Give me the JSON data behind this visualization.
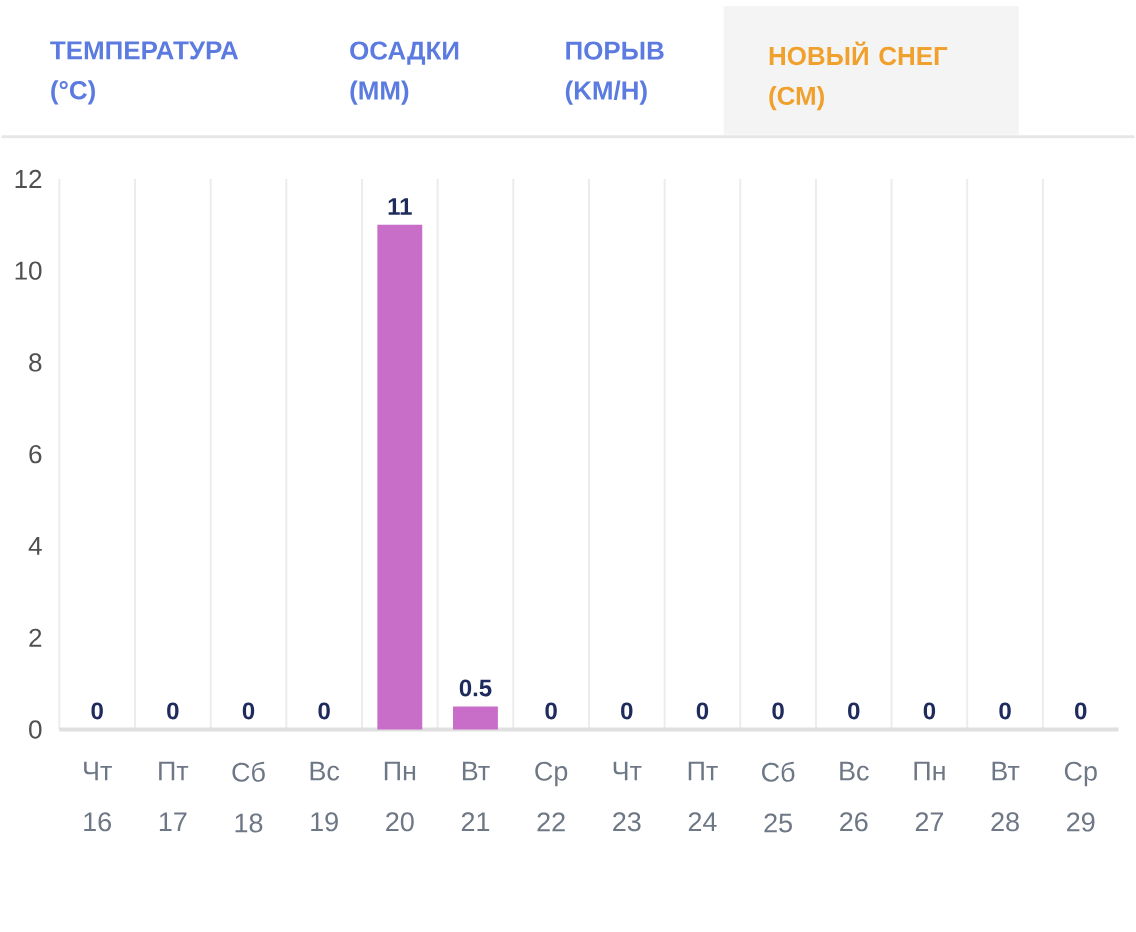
{
  "chart_data": {
    "type": "bar",
    "title": "НОВЫЙ СНЕГ (СМ)",
    "annotations": [
      "ТЕМПЕРАТУРА (°C)",
      "ОСАДКИ (ММ)",
      "ПОРЫВ (KM/H)"
    ],
    "categories": [
      "Чт 16",
      "Пт 17",
      "Сб 18",
      "Вс 19",
      "Пн 20",
      "Вт 21",
      "Ср 22",
      "Чт 23",
      "Пт 24",
      "Сб 25",
      "Вс 26",
      "Пн 27",
      "Вт 28",
      "Ср 29"
    ],
    "values": [
      0,
      0,
      0,
      0,
      11,
      0.5,
      0,
      0,
      0,
      0,
      0,
      0,
      0,
      0
    ],
    "color": "#c86dc8",
    "ylim": [
      0,
      12
    ],
    "yticks": [
      0,
      2,
      4,
      6,
      8,
      10,
      12
    ],
    "grid": "x",
    "data_labels": true
  }
}
